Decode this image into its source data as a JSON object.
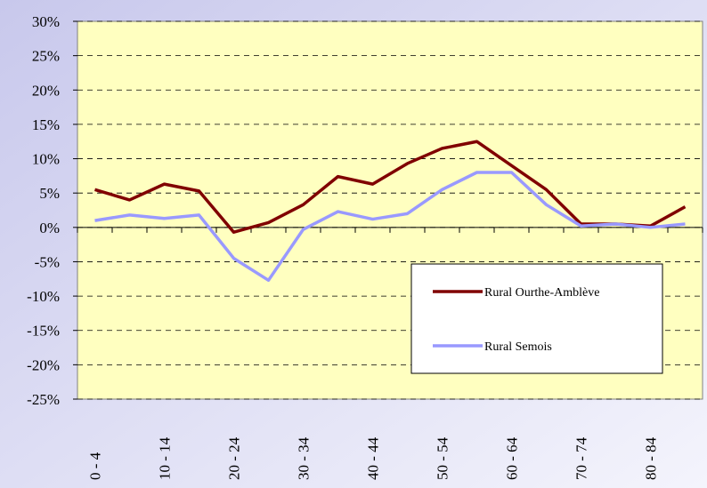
{
  "chart_data": {
    "type": "line",
    "categories": [
      "0 - 4",
      null,
      "10 - 14",
      null,
      "20 - 24",
      null,
      "30 - 34",
      null,
      "40 - 44",
      null,
      "50 - 54",
      null,
      "60 - 64",
      null,
      "70 - 74",
      null,
      "80 - 84",
      null
    ],
    "series": [
      {
        "name": "Rural Ourthe-Amblève",
        "color": "#800000",
        "values": [
          5.5,
          4,
          6.3,
          5.3,
          -0.7,
          0.7,
          3.3,
          7.4,
          6.3,
          9.3,
          11.5,
          12.5,
          9,
          5.5,
          0.5,
          0.5,
          0.2,
          3
        ]
      },
      {
        "name": "Rural Semois",
        "color": "#9999ff",
        "values": [
          1,
          1.8,
          1.3,
          1.8,
          -4.5,
          -7.7,
          -0.3,
          2.3,
          1.2,
          2,
          5.5,
          8,
          8,
          3.3,
          0.2,
          0.5,
          0,
          0.5
        ]
      }
    ],
    "ylim": [
      -25,
      30
    ],
    "yticks": [
      {
        "value": -25,
        "label": "-25%"
      },
      {
        "value": -20,
        "label": "-20%"
      },
      {
        "value": -15,
        "label": "-15%"
      },
      {
        "value": -10,
        "label": "-10%"
      },
      {
        "value": -5,
        "label": "-5%"
      },
      {
        "value": 0,
        "label": "0%"
      },
      {
        "value": 5,
        "label": "5%"
      },
      {
        "value": 10,
        "label": "10%"
      },
      {
        "value": 15,
        "label": "15%"
      },
      {
        "value": 20,
        "label": "20%"
      },
      {
        "value": 25,
        "label": "25%"
      },
      {
        "value": 30,
        "label": "30%"
      }
    ],
    "grid": true,
    "plot_color": "#ffffc0"
  }
}
